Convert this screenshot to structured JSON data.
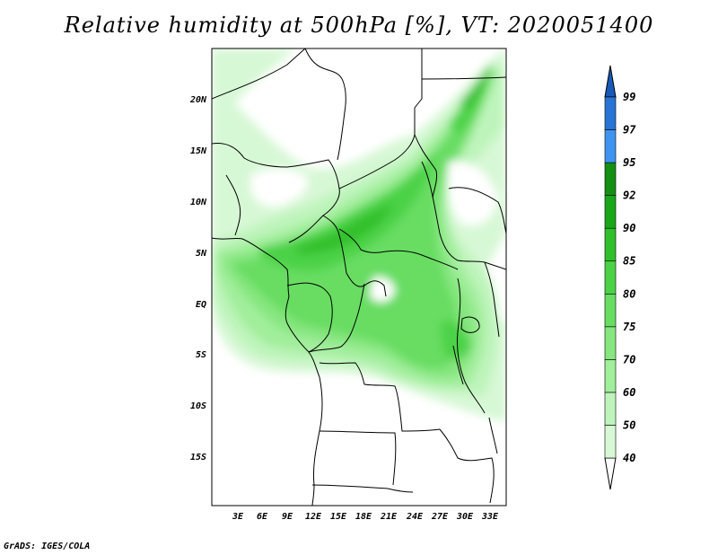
{
  "title": "Relative humidity at 500hPa [%], VT: 2020051400",
  "footer": "GrADS: IGES/COLA",
  "map": {
    "lat_labels": [
      "20N",
      "15N",
      "10N",
      "5N",
      "EQ",
      "5S",
      "10S",
      "15S"
    ],
    "lon_labels": [
      "3E",
      "6E",
      "9E",
      "12E",
      "15E",
      "18E",
      "21E",
      "24E",
      "27E",
      "30E",
      "33E"
    ]
  },
  "colorbar": {
    "unit": "%",
    "levels": [
      "40",
      "50",
      "60",
      "70",
      "75",
      "80",
      "85",
      "90",
      "92",
      "95",
      "97",
      "99"
    ],
    "colors": [
      "#f0fcf0",
      "#d7f8d5",
      "#bef4bb",
      "#a1ee9b",
      "#86e67f",
      "#68dd62",
      "#4cd246",
      "#30c02b",
      "#1ba61a",
      "#168f15",
      "#3f94ef",
      "#2a73d6",
      "#1959b8"
    ]
  },
  "colors": {
    "frame": "#000000",
    "background": "#ffffff"
  }
}
